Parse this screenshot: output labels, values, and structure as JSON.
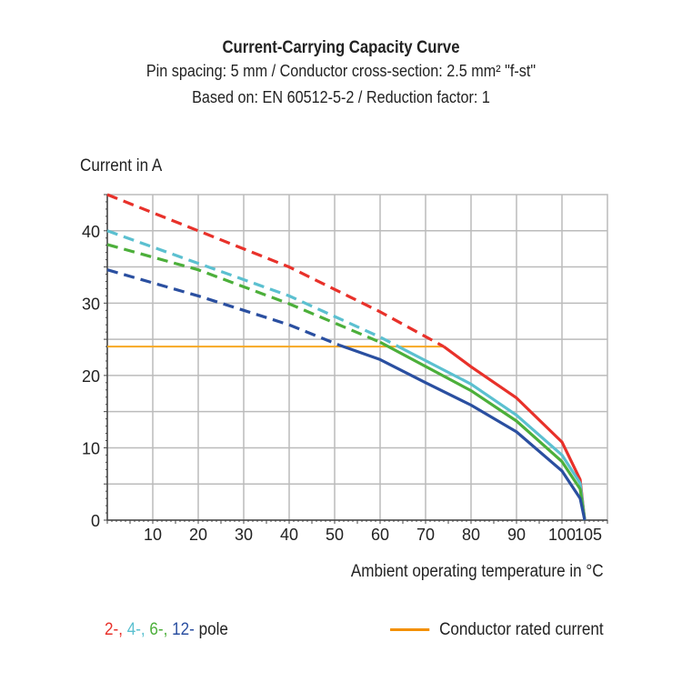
{
  "chart_data": {
    "type": "line",
    "title": "Current-Carrying Capacity Curve",
    "subtitle": [
      "Pin spacing: 5 mm / Conductor cross-section: 2.5 mm² \"f-st\"",
      "Based on: EN 60512-5-2 / Reduction factor: 1"
    ],
    "xlabel": "Ambient operating temperature in °C",
    "ylabel": "Current in A",
    "xlim": [
      0,
      110
    ],
    "ylim": [
      0,
      45
    ],
    "xticks": [
      10,
      20,
      30,
      40,
      50,
      60,
      70,
      80,
      90,
      100,
      105
    ],
    "yticks": [
      0,
      10,
      20,
      30,
      40
    ],
    "grid": true,
    "series": [
      {
        "name": "2-",
        "color": "#e8312a",
        "dashed_until": 74,
        "x": [
          0,
          20,
          40,
          60,
          74,
          80,
          90,
          100,
          104,
          105
        ],
        "y": [
          45,
          40,
          35,
          28.8,
          24,
          21.2,
          16.9,
          10.8,
          5.6,
          0
        ]
      },
      {
        "name": "4-",
        "color": "#5bc0d0",
        "dashed_until": 64,
        "x": [
          0,
          20,
          40,
          60,
          64,
          80,
          90,
          100,
          104,
          105
        ],
        "y": [
          40,
          35.5,
          31,
          25.3,
          24,
          18.8,
          14.5,
          9,
          5.1,
          0
        ]
      },
      {
        "name": "6-",
        "color": "#4caf3a",
        "dashed_until": 60,
        "x": [
          0,
          20,
          40,
          60,
          80,
          90,
          100,
          104,
          105
        ],
        "y": [
          38.1,
          34.6,
          29.9,
          24.6,
          17.9,
          13.7,
          8.1,
          4.3,
          0
        ]
      },
      {
        "name": "12-",
        "color": "#2a4fa0",
        "dashed_until": 51,
        "x": [
          0,
          20,
          40,
          51,
          60,
          70,
          80,
          90,
          100,
          104,
          105
        ],
        "y": [
          34.6,
          31,
          27,
          24.2,
          22.2,
          19,
          15.9,
          12.2,
          6.8,
          3,
          0
        ]
      }
    ],
    "reference_line": {
      "name": "Conductor rated current",
      "color": "#f7a823",
      "y": 24,
      "x": [
        0,
        74
      ]
    },
    "legend": {
      "poles_suffix": " pole",
      "placement": "bottom"
    }
  }
}
